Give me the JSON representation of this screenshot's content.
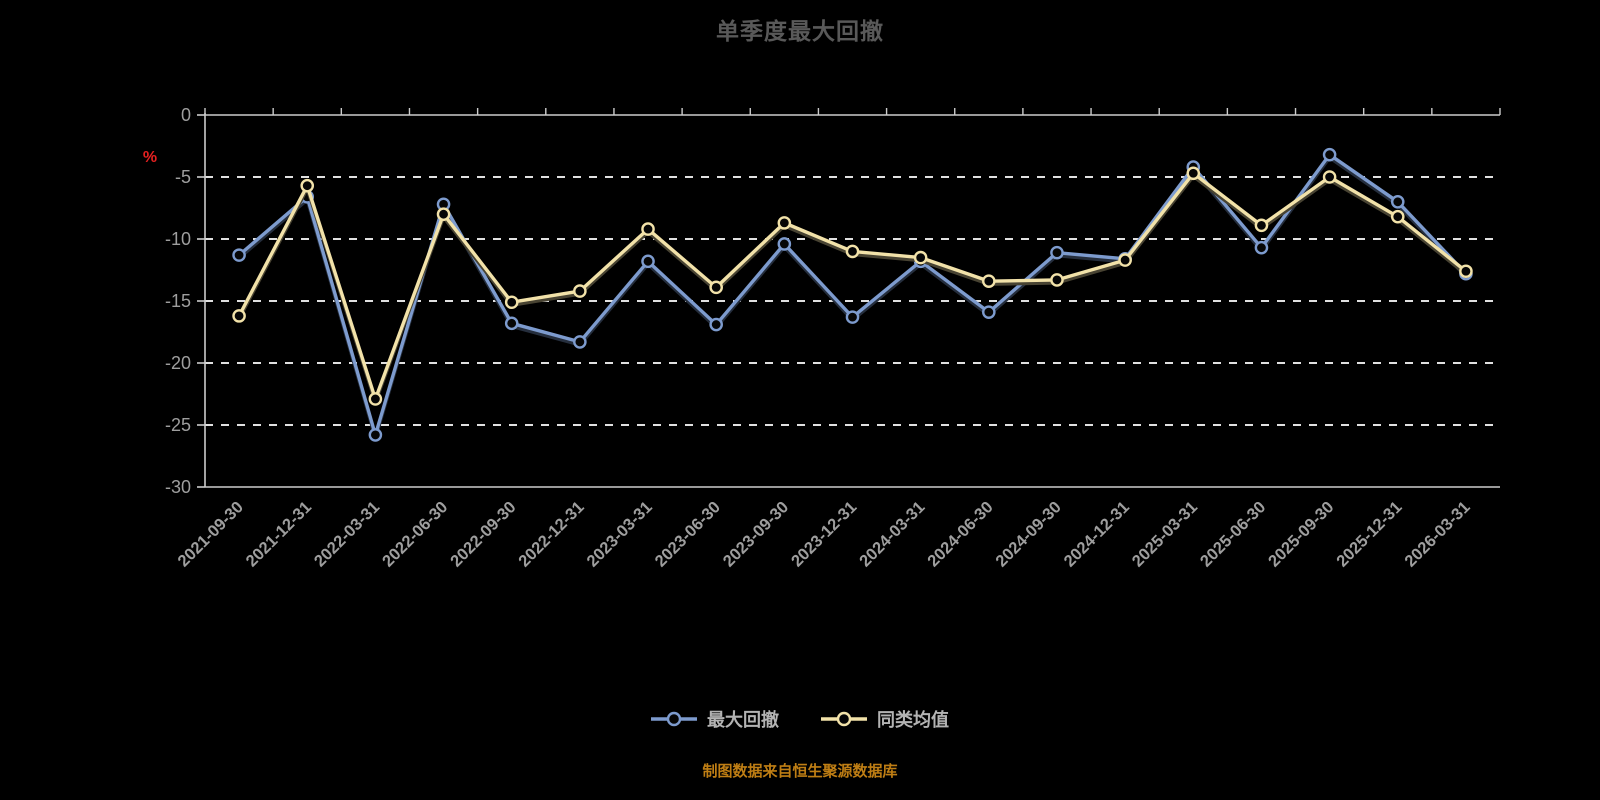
{
  "title": "单季度最大回撤",
  "footer": "制图数据来自恒生聚源数据库",
  "colors": {
    "background": "#000000",
    "title": "#595959",
    "footer": "#bf7e14",
    "axis_line": "#cccccc",
    "grid_line": "#ffffff",
    "tick_label": "#9e9e9e",
    "unit_label": "#e62020",
    "legend_text": "#b3b3b3",
    "point_fill": "#060606"
  },
  "chart_data": {
    "type": "line",
    "title": "单季度最大回撤",
    "xlabel": "",
    "ylabel": "%",
    "ylim": [
      -30,
      0
    ],
    "yticks": [
      0,
      -5,
      -10,
      -15,
      -20,
      -25,
      -30
    ],
    "grid": true,
    "legend_position": "bottom",
    "categories": [
      "2021-09-30",
      "2021-12-31",
      "2022-03-31",
      "2022-06-30",
      "2022-09-30",
      "2022-12-31",
      "2023-03-31",
      "2023-06-30",
      "2023-09-30",
      "2023-12-31",
      "2024-03-31",
      "2024-06-30",
      "2024-09-30",
      "2024-12-31",
      "2025-03-31",
      "2025-06-30",
      "2025-09-30",
      "2025-12-31",
      "2026-03-31"
    ],
    "series": [
      {
        "name": "最大回撤",
        "color": "#7d9bce",
        "values": [
          -11.3,
          -6.6,
          -25.8,
          -7.2,
          -16.8,
          -18.3,
          -11.8,
          -16.9,
          -10.4,
          -16.3,
          -11.8,
          -15.9,
          -11.1,
          -11.6,
          -4.2,
          -10.7,
          -3.2,
          -7.0,
          -12.8
        ]
      },
      {
        "name": "同类均值",
        "color": "#f2e2a9",
        "values": [
          -16.2,
          -5.7,
          -22.9,
          -8.0,
          -15.1,
          -14.2,
          -9.2,
          -13.9,
          -8.7,
          -11.0,
          -11.5,
          -13.4,
          -13.3,
          -11.7,
          -4.7,
          -8.9,
          -5.0,
          -8.2,
          -12.6
        ]
      }
    ]
  }
}
